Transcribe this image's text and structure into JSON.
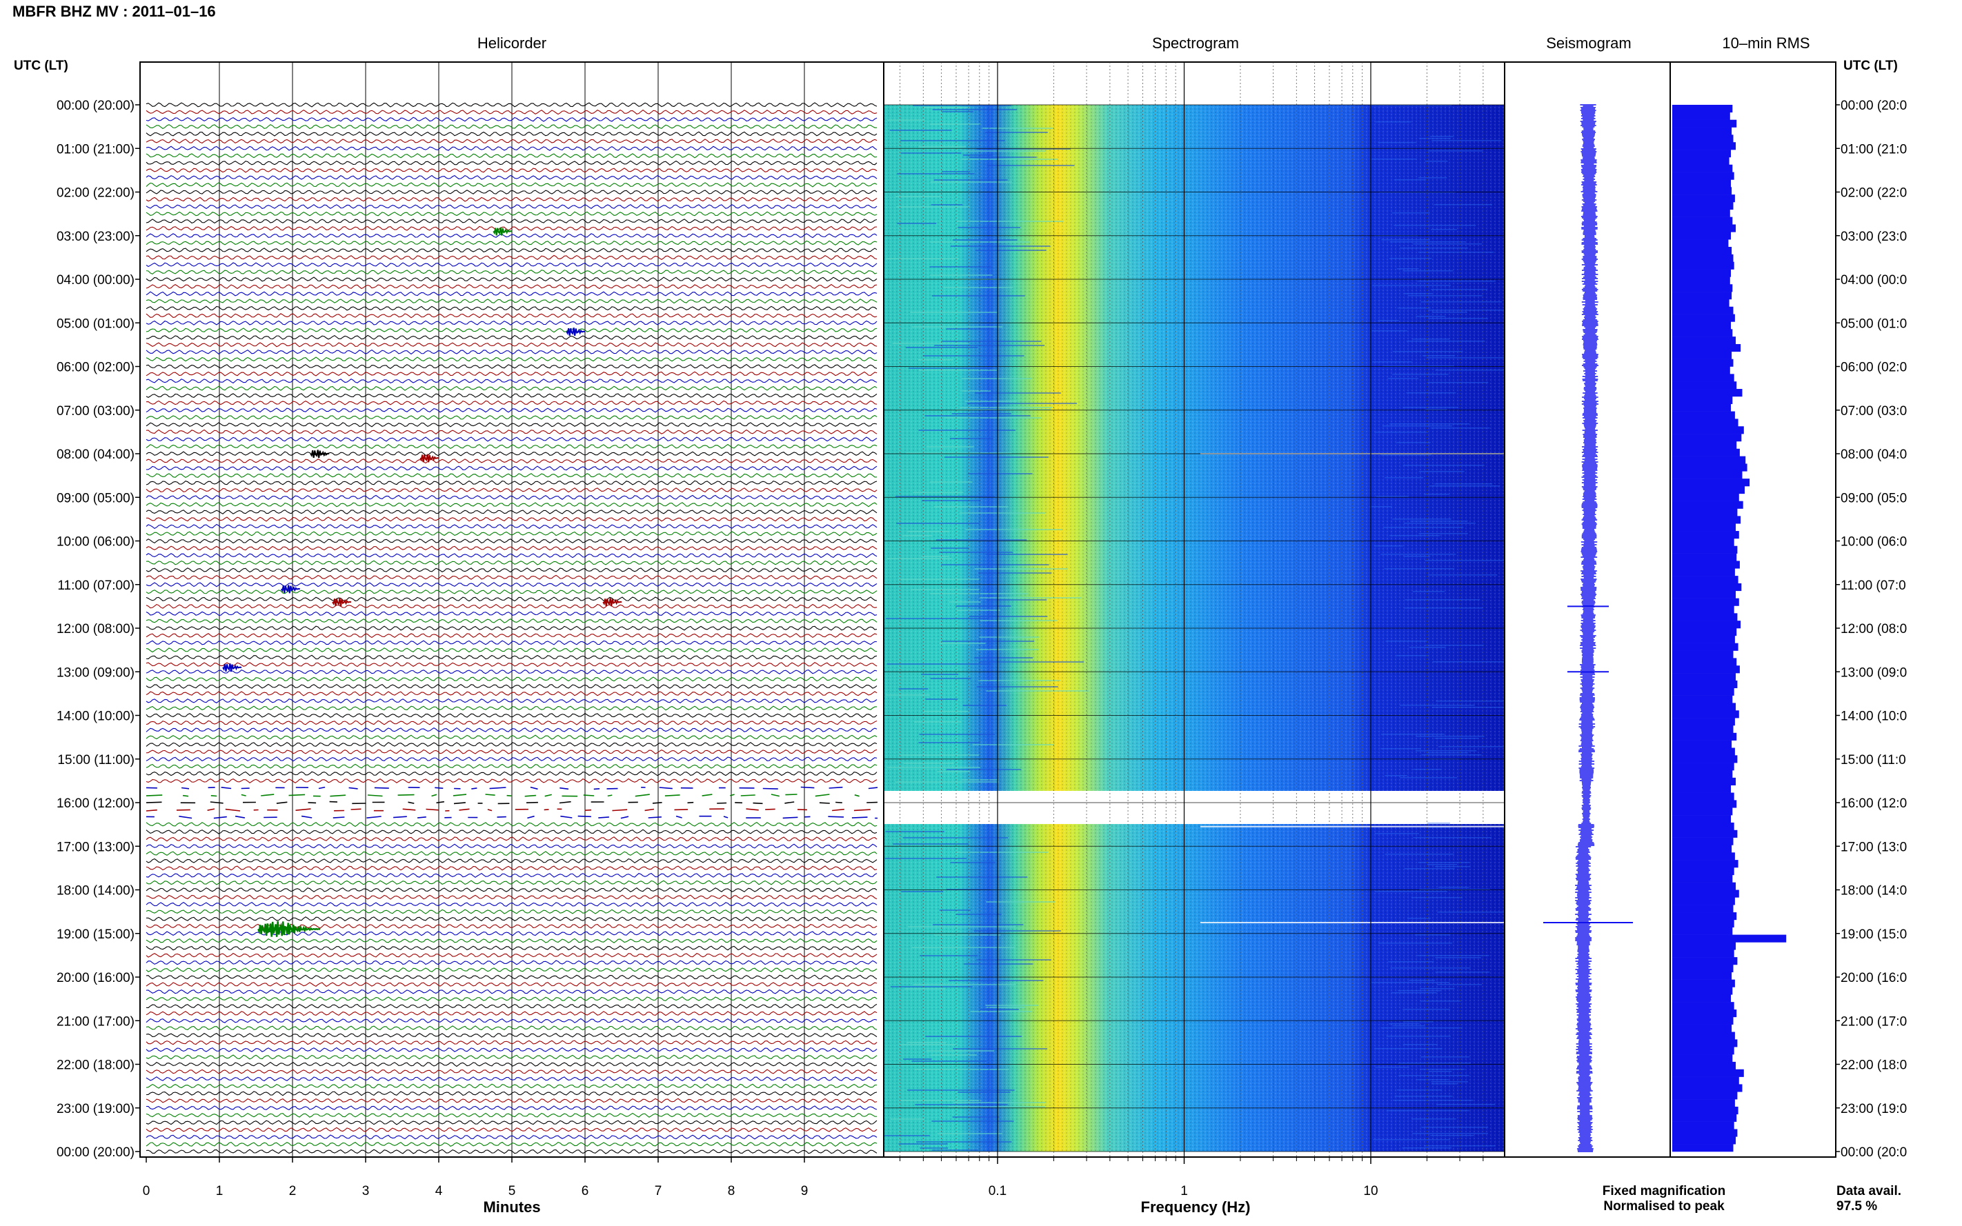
{
  "title": "MBFR BHZ MV : 2011–01–16",
  "panels": {
    "helicorder": "Helicorder",
    "spectrogram": "Spectrogram",
    "seismogram": "Seismogram",
    "rms": "10–min RMS"
  },
  "axis_header_left": "UTC (LT)",
  "axis_header_right": "UTC (LT)",
  "time_labels": [
    "00:00 (20:00)",
    "01:00 (21:00)",
    "02:00 (22:00)",
    "03:00 (23:00)",
    "04:00 (00:00)",
    "05:00 (01:00)",
    "06:00 (02:00)",
    "07:00 (03:00)",
    "08:00 (04:00)",
    "09:00 (05:00)",
    "10:00 (06:00)",
    "11:00 (07:00)",
    "12:00 (08:00)",
    "13:00 (09:00)",
    "14:00 (10:00)",
    "15:00 (11:00)",
    "16:00 (12:00)",
    "17:00 (13:00)",
    "18:00 (14:00)",
    "19:00 (15:00)",
    "20:00 (16:00)",
    "21:00 (17:00)",
    "22:00 (18:00)",
    "23:00 (19:00)",
    "00:00 (20:00)"
  ],
  "time_labels_right": [
    "00:00 (20:0",
    "01:00 (21:0",
    "02:00 (22:0",
    "03:00 (23:0",
    "04:00 (00:0",
    "05:00 (01:0",
    "06:00 (02:0",
    "07:00 (03:0",
    "08:00 (04:0",
    "09:00 (05:0",
    "10:00 (06:0",
    "11:00 (07:0",
    "12:00 (08:0",
    "13:00 (09:0",
    "14:00 (10:0",
    "15:00 (11:0",
    "16:00 (12:0",
    "17:00 (13:0",
    "18:00 (14:0",
    "19:00 (15:0",
    "20:00 (16:0",
    "21:00 (17:0",
    "22:00 (18:0",
    "23:00 (19:0",
    "00:00 (20:0"
  ],
  "legend": {
    "fixed": "Fixed magnification",
    "normalised": "Normalised to peak",
    "fixed_color": "#1010ee",
    "normalised_color": "#ee1010"
  },
  "availability": {
    "label": "Data avail.",
    "value": "97.5 %"
  },
  "chart_data": [
    {
      "type": "line",
      "name": "helicorder",
      "title": "Helicorder",
      "xlabel": "Minutes",
      "ylabel": "UTC (LT)",
      "xlim": [
        0,
        10
      ],
      "x_ticks": [
        "0",
        "1",
        "2",
        "3",
        "4",
        "5",
        "6",
        "7",
        "8",
        "9"
      ],
      "lines_per_hour": 6,
      "trace_colors": [
        "#000000",
        "#a00000",
        "#0000c0",
        "#008000"
      ],
      "gap_hours": [
        15.6,
        16.4
      ],
      "events": [
        {
          "hour": 18.9,
          "minute": 1.7,
          "color": "green"
        },
        {
          "hour": 11.4,
          "minute": 2.6,
          "color": "red"
        },
        {
          "hour": 11.4,
          "minute": 6.3,
          "color": "red"
        },
        {
          "hour": 2.9,
          "minute": 4.8,
          "color": "green"
        },
        {
          "hour": 8.0,
          "minute": 2.3,
          "color": "black"
        },
        {
          "hour": 8.1,
          "minute": 3.8,
          "color": "red"
        },
        {
          "hour": 11.1,
          "minute": 1.9,
          "color": "blue"
        },
        {
          "hour": 12.9,
          "minute": 1.1,
          "color": "blue"
        },
        {
          "hour": 5.2,
          "minute": 5.8,
          "color": "blue"
        }
      ]
    },
    {
      "type": "heatmap",
      "name": "spectrogram",
      "title": "Spectrogram",
      "xlabel": "Frequency (Hz)",
      "x_scale": "log",
      "x_ticks": [
        "0.1",
        "1",
        "10"
      ],
      "peak_frequency_hz": 0.3,
      "gap_hours": [
        15.55,
        16.45
      ]
    },
    {
      "type": "line",
      "name": "seismogram",
      "title": "Seismogram",
      "events": [
        {
          "hour": 11.5,
          "size": "small"
        },
        {
          "hour": 13.0,
          "size": "small"
        },
        {
          "hour": 18.75,
          "size": "large"
        }
      ]
    },
    {
      "type": "bar",
      "name": "10-min RMS",
      "title": "10–min RMS",
      "values": [
        0.74,
        0.71,
        0.79,
        0.73,
        0.75,
        0.78,
        0.72,
        0.7,
        0.74,
        0.76,
        0.72,
        0.73,
        0.77,
        0.75,
        0.71,
        0.74,
        0.78,
        0.72,
        0.69,
        0.73,
        0.75,
        0.76,
        0.72,
        0.71,
        0.74,
        0.73,
        0.7,
        0.75,
        0.77,
        0.72,
        0.74,
        0.78,
        0.84,
        0.73,
        0.75,
        0.71,
        0.76,
        0.79,
        0.86,
        0.74,
        0.72,
        0.77,
        0.81,
        0.88,
        0.85,
        0.79,
        0.83,
        0.9,
        0.92,
        0.86,
        0.95,
        0.89,
        0.82,
        0.87,
        0.8,
        0.84,
        0.78,
        0.82,
        0.76,
        0.8,
        0.79,
        0.83,
        0.77,
        0.81,
        0.85,
        0.78,
        0.82,
        0.76,
        0.8,
        0.84,
        0.79,
        0.77,
        0.81,
        0.75,
        0.79,
        0.83,
        0.78,
        0.8,
        0.76,
        0.74,
        0.78,
        0.82,
        0.77,
        0.75,
        0.79,
        0.73,
        0.77,
        0.8,
        0.76,
        0.74,
        0.78,
        0.72,
        0.76,
        0.79,
        0.74,
        0.72,
        0.76,
        0.8,
        0.75,
        0.73,
        0.77,
        0.81,
        0.76,
        0.74,
        0.78,
        0.82,
        0.77,
        0.75,
        0.79,
        0.76,
        0.74,
        1.4,
        0.78,
        0.76,
        0.8,
        0.75,
        0.73,
        0.77,
        0.74,
        0.72,
        0.76,
        0.79,
        0.75,
        0.73,
        0.77,
        0.8,
        0.76,
        0.74,
        0.78,
        0.88,
        0.82,
        0.86,
        0.8,
        0.77,
        0.81,
        0.79,
        0.76,
        0.8,
        0.78,
        0.75
      ],
      "bar_color": "#1010ee"
    }
  ]
}
